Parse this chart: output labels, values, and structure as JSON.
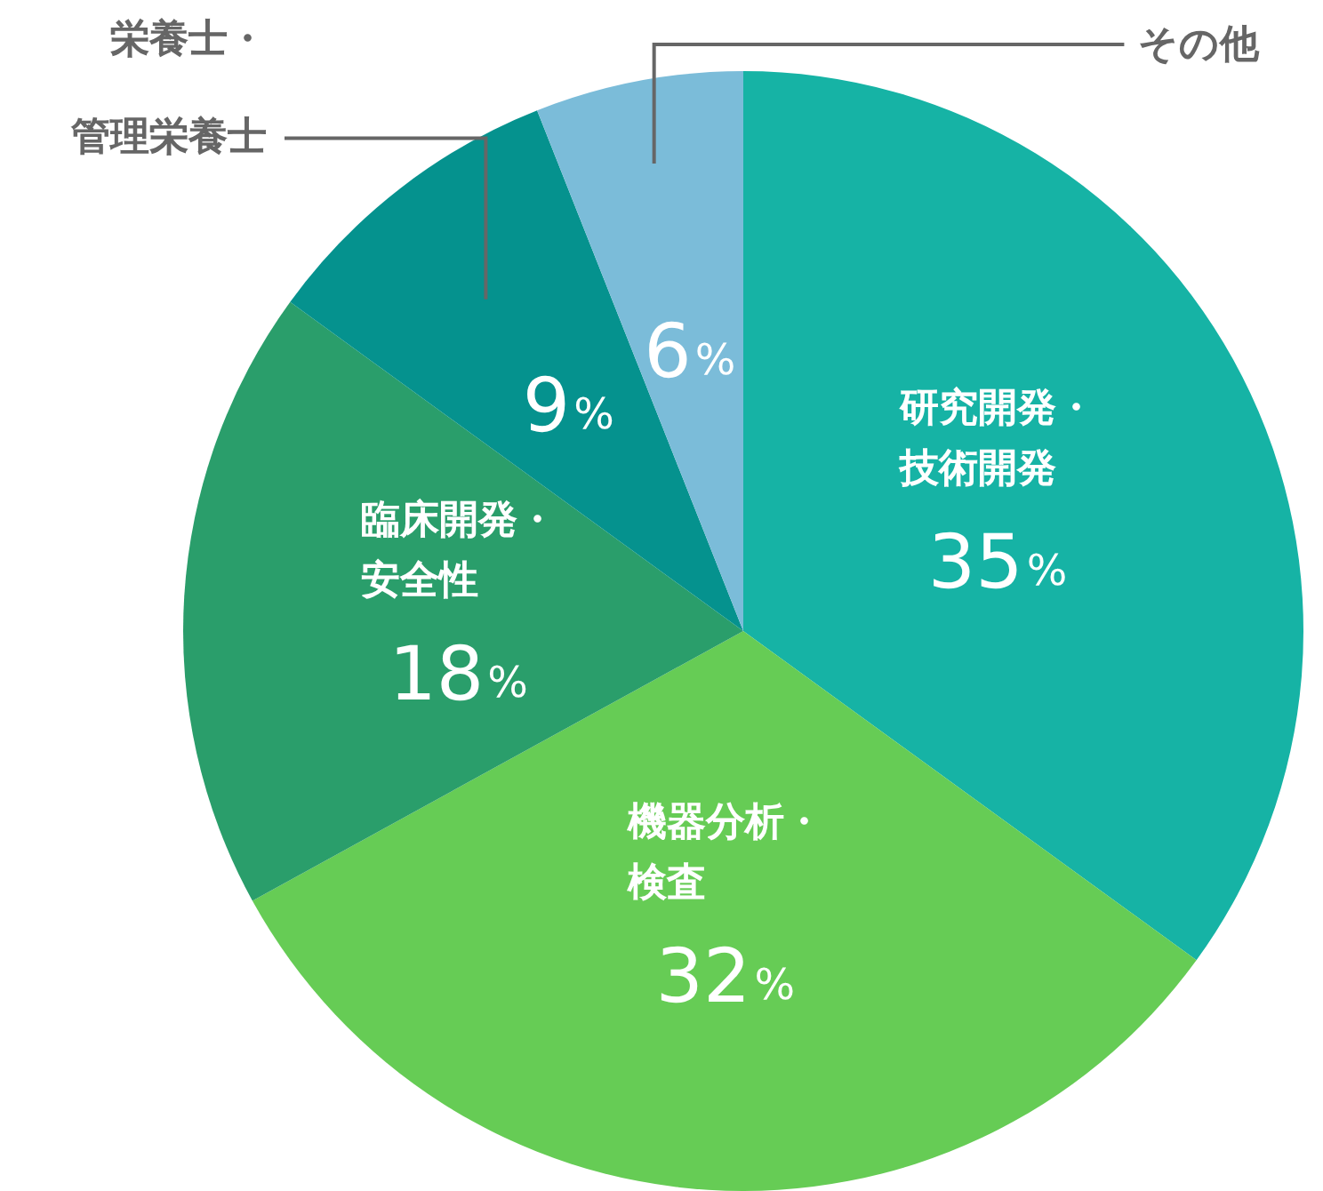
{
  "chart_data": {
    "type": "pie",
    "categories": [
      "研究開発・技術開発",
      "機器分析・検査",
      "臨床開発・安全性",
      "栄養士・管理栄養士",
      "その他"
    ],
    "values": [
      35,
      32,
      18,
      9,
      6
    ],
    "colors": [
      "#16b3a5",
      "#66cc55",
      "#2a9e6b",
      "#05928e",
      "#7bbcd9"
    ],
    "value_labels": [
      "35%",
      "32%",
      "18%",
      "9%",
      "6%"
    ],
    "legend": false
  }
}
